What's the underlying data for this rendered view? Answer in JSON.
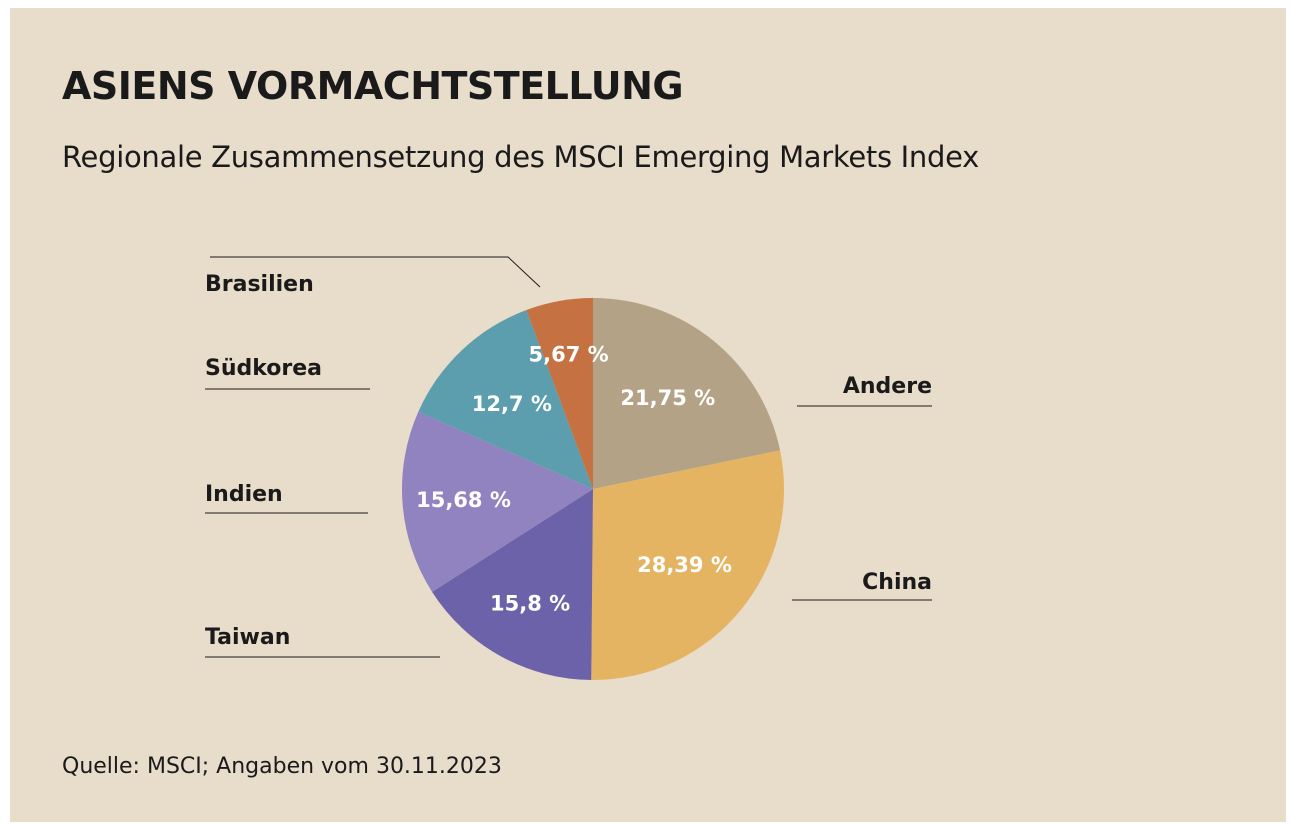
{
  "header": {
    "title": "ASIENS VORMACHTSTELLUNG",
    "subtitle": "Regionale Zusammensetzung des MSCI Emerging Markets Index"
  },
  "footer": {
    "source": "Quelle: MSCI; Angaben vom 30.11.2023"
  },
  "chart_data": {
    "type": "pie",
    "title": "ASIENS VORMACHTSTELLUNG",
    "subtitle": "Regionale Zusammensetzung des MSCI Emerging Markets Index",
    "slices": [
      {
        "label": "Andere",
        "value": 21.75,
        "value_label": "21,75 %",
        "color": "#b3a285"
      },
      {
        "label": "China",
        "value": 28.39,
        "value_label": "28,39 %",
        "color": "#e5b463"
      },
      {
        "label": "Taiwan",
        "value": 15.8,
        "value_label": "15,8 %",
        "color": "#6c62aa"
      },
      {
        "label": "Indien",
        "value": 15.68,
        "value_label": "15,68 %",
        "color": "#9183bf"
      },
      {
        "label": "Südkorea",
        "value": 12.7,
        "value_label": "12,7 %",
        "color": "#5c9dae"
      },
      {
        "label": "Brasilien",
        "value": 5.67,
        "value_label": "5,67 %",
        "color": "#c57141"
      }
    ],
    "start_angle": "12 o'clock",
    "direction": "clockwise",
    "legend": "none (external labels with leader lines)"
  }
}
